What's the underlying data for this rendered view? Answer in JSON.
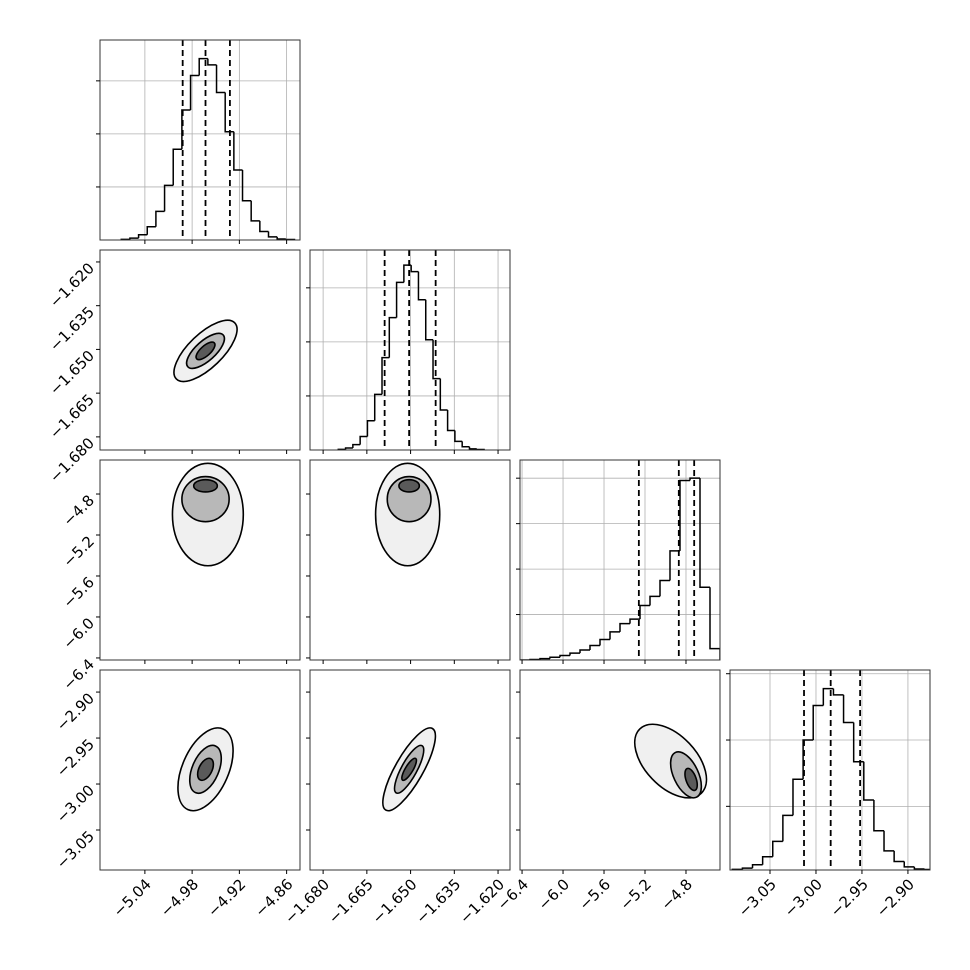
{
  "chart_data": {
    "type": "corner",
    "color": "#000000",
    "grid": true,
    "contour_fills": [
      "#f0f0f0",
      "#b8b8b8",
      "#5a5a5a"
    ],
    "parameters": [
      {
        "lim": [
          -5.097,
          -4.843
        ],
        "ticks": [
          {
            "value": -5.04,
            "label": "−5.04"
          },
          {
            "value": -4.98,
            "label": "−4.98"
          },
          {
            "value": -4.92,
            "label": "−4.92"
          },
          {
            "value": -4.86,
            "label": "−4.86"
          }
        ],
        "quantiles": [
          -4.992,
          -4.963,
          -4.932
        ],
        "hist": {
          "bins": [
            -5.07,
            -5.059,
            -5.048,
            -5.037,
            -5.026,
            -5.015,
            -5.004,
            -4.993,
            -4.982,
            -4.971,
            -4.96,
            -4.949,
            -4.938,
            -4.927,
            -4.916,
            -4.905,
            -4.894,
            -4.883,
            -4.872,
            -4.861,
            -4.85
          ],
          "counts": [
            0.011,
            0.036,
            0.1,
            0.25,
            0.54,
            1.03,
            1.71,
            2.45,
            3.1,
            3.42,
            3.3,
            2.78,
            2.04,
            1.32,
            0.74,
            0.36,
            0.16,
            0.06,
            0.02,
            0.01
          ],
          "ylim": [
            0,
            3.77
          ],
          "yticks": [
            1,
            2,
            3
          ]
        }
      },
      {
        "lim": [
          -1.6845,
          -1.6159
        ],
        "ticks": [
          {
            "value": -1.68,
            "label": "−1.680"
          },
          {
            "value": -1.665,
            "label": "−1.665"
          },
          {
            "value": -1.65,
            "label": "−1.650"
          },
          {
            "value": -1.635,
            "label": "−1.635"
          },
          {
            "value": -1.62,
            "label": "−1.620"
          }
        ],
        "quantiles": [
          -1.6589,
          -1.6505,
          -1.6414
        ],
        "hist": {
          "bins": [
            -1.6748,
            -1.6723,
            -1.6698,
            -1.6673,
            -1.6648,
            -1.6623,
            -1.6598,
            -1.6573,
            -1.6548,
            -1.6523,
            -1.6498,
            -1.6473,
            -1.6448,
            -1.6423,
            -1.6398,
            -1.6373,
            -1.6348,
            -1.6323,
            -1.6298,
            -1.6273,
            -1.6248
          ],
          "counts": [
            0.011,
            0.036,
            0.1,
            0.25,
            0.54,
            1.03,
            1.71,
            2.45,
            3.1,
            3.42,
            3.3,
            2.78,
            2.04,
            1.32,
            0.74,
            0.36,
            0.16,
            0.06,
            0.02,
            0.01
          ],
          "ylim": [
            0,
            3.7
          ],
          "yticks": [
            1,
            2,
            3
          ]
        }
      },
      {
        "lim": [
          -6.42,
          -4.468
        ],
        "ticks": [
          {
            "value": -6.4,
            "label": "−6.4"
          },
          {
            "value": -6.0,
            "label": "−6.0"
          },
          {
            "value": -5.6,
            "label": "−5.6"
          },
          {
            "value": -5.2,
            "label": "−5.2"
          },
          {
            "value": -4.8,
            "label": "−4.8"
          }
        ],
        "quantiles": [
          -5.26,
          -4.87,
          -4.72
        ],
        "hist": {
          "bins": [
            -6.42,
            -6.3224,
            -6.2248,
            -6.1272,
            -6.0296,
            -5.932,
            -5.8344,
            -5.7368,
            -5.6392,
            -5.5416,
            -5.444,
            -5.3464,
            -5.2488,
            -5.1512,
            -5.0536,
            -4.956,
            -4.8584,
            -4.7608,
            -4.6632,
            -4.5656,
            -4.468
          ],
          "counts": [
            0,
            0.01,
            0.03,
            0.06,
            0.1,
            0.15,
            0.22,
            0.32,
            0.45,
            0.62,
            0.8,
            0.9,
            1.2,
            1.4,
            1.75,
            2.4,
            3.95,
            4.0,
            1.6,
            0.25
          ],
          "ylim": [
            0,
            4.4
          ],
          "yticks": [
            1,
            2,
            3,
            4
          ]
        }
      },
      {
        "lim": [
          -3.0935,
          -2.876
        ],
        "ticks": [
          {
            "value": -3.05,
            "label": "−3.05"
          },
          {
            "value": -3.0,
            "label": "−3.00"
          },
          {
            "value": -2.95,
            "label": "−2.95"
          },
          {
            "value": -2.9,
            "label": "−2.90"
          }
        ],
        "quantiles": [
          -3.013,
          -2.984,
          -2.952
        ],
        "hist": {
          "bins": [
            -3.091,
            -3.08,
            -3.069,
            -3.058,
            -3.047,
            -3.036,
            -3.025,
            -3.014,
            -3.003,
            -2.992,
            -2.981,
            -2.97,
            -2.959,
            -2.948,
            -2.937,
            -2.926,
            -2.915,
            -2.904,
            -2.893,
            -2.882,
            -2.871
          ],
          "counts": [
            0.011,
            0.036,
            0.1,
            0.25,
            0.54,
            1.03,
            1.71,
            2.45,
            3.1,
            3.42,
            3.3,
            2.78,
            2.04,
            1.32,
            0.74,
            0.36,
            0.16,
            0.06,
            0.02,
            0.01
          ],
          "ylim": [
            0,
            3.77
          ],
          "yticks": [
            1.2,
            2.45,
            3.7
          ]
        }
      }
    ],
    "pairs": [
      {
        "contours": [
          {
            "x": -4.963,
            "y": -1.6505,
            "sx": 0.04,
            "sy": 0.0105,
            "rho": 0.7
          },
          {
            "x": -4.963,
            "y": -1.6505,
            "sx": 0.024,
            "sy": 0.006,
            "rho": 0.7
          },
          {
            "x": -4.963,
            "y": -1.6505,
            "sx": 0.012,
            "sy": 0.003,
            "rho": 0.7
          }
        ]
      },
      {
        "contours": [
          {
            "x": -4.96,
            "y": -5.0,
            "sx": 0.045,
            "sy": 0.5,
            "rho": 0
          },
          {
            "x": -4.963,
            "y": -4.85,
            "sx": 0.03,
            "sy": 0.22,
            "rho": 0
          },
          {
            "x": -4.963,
            "y": -4.72,
            "sx": 0.015,
            "sy": 0.06,
            "rho": 0
          }
        ]
      },
      {
        "contours": [
          {
            "x": -1.651,
            "y": -5.0,
            "sx": 0.011,
            "sy": 0.5,
            "rho": 0
          },
          {
            "x": -1.6505,
            "y": -4.85,
            "sx": 0.0075,
            "sy": 0.22,
            "rho": 0
          },
          {
            "x": -1.6505,
            "y": -4.72,
            "sx": 0.0035,
            "sy": 0.06,
            "rho": 0
          }
        ]
      },
      {
        "contours": [
          {
            "x": -4.963,
            "y": -2.984,
            "sx": 0.035,
            "sy": 0.045,
            "rho": 0.45
          },
          {
            "x": -4.963,
            "y": -2.984,
            "sx": 0.02,
            "sy": 0.026,
            "rho": 0.45
          },
          {
            "x": -4.963,
            "y": -2.984,
            "sx": 0.01,
            "sy": 0.012,
            "rho": 0.45
          }
        ]
      },
      {
        "contours": [
          {
            "x": -1.6505,
            "y": -2.984,
            "sx": 0.009,
            "sy": 0.045,
            "rho": 0.8
          },
          {
            "x": -1.6505,
            "y": -2.984,
            "sx": 0.005,
            "sy": 0.026,
            "rho": 0.8
          },
          {
            "x": -1.6505,
            "y": -2.984,
            "sx": 0.0025,
            "sy": 0.012,
            "rho": 0.8
          }
        ]
      },
      {
        "contours": [
          {
            "x": -4.95,
            "y": -2.975,
            "sx": 0.35,
            "sy": 0.04,
            "rho": -0.5
          },
          {
            "x": -4.8,
            "y": -2.99,
            "sx": 0.15,
            "sy": 0.025,
            "rho": -0.5
          },
          {
            "x": -4.75,
            "y": -2.995,
            "sx": 0.06,
            "sy": 0.012,
            "rho": -0.5
          }
        ]
      }
    ]
  }
}
